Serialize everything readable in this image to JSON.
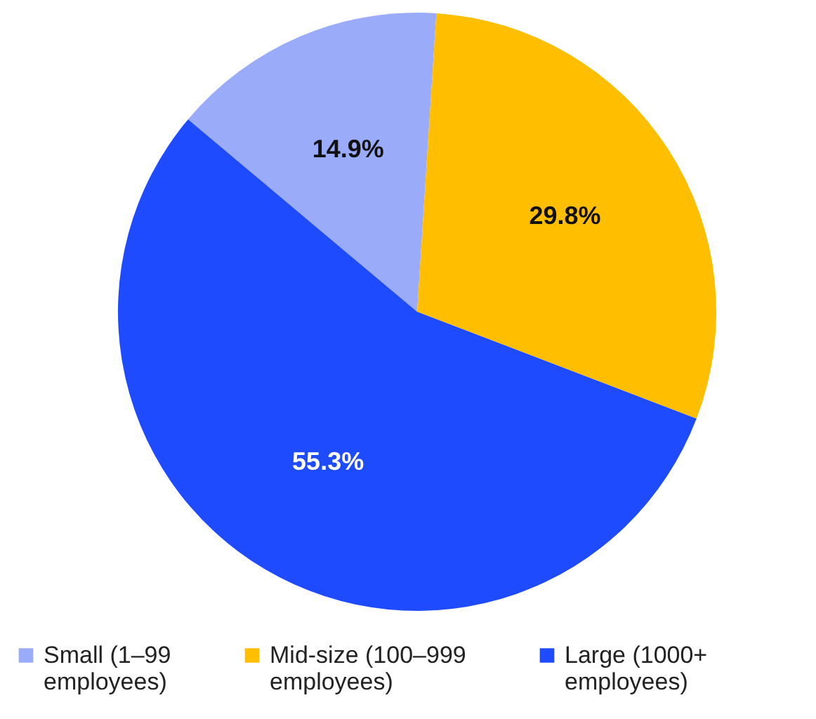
{
  "chart_data": {
    "type": "pie",
    "categories": [
      "Small (1–99 employees)",
      "Mid-size (100–999 employees)",
      "Large (1000+ employees)"
    ],
    "values": [
      14.9,
      29.8,
      55.3
    ],
    "colors": [
      "#9aabfa",
      "#ffbe00",
      "#1f4bff"
    ],
    "value_labels": [
      "14.9%",
      "29.8%",
      "55.3%"
    ],
    "legend": "bottom"
  }
}
